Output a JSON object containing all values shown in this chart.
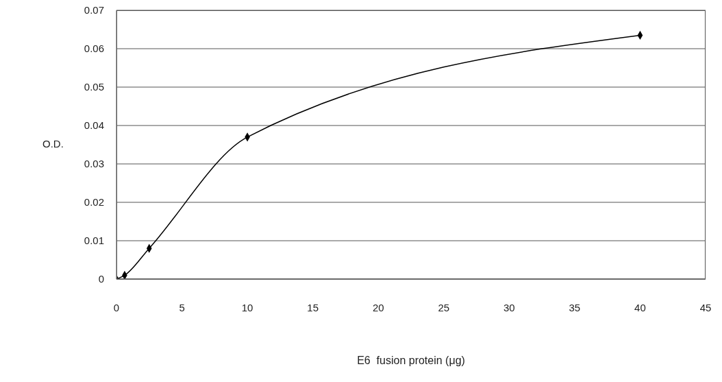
{
  "chart_data": {
    "type": "line",
    "xlabel": "E6  fusion protein (μg)",
    "ylabel": "O.D.",
    "x": [
      0,
      0.625,
      2.5,
      10,
      40
    ],
    "series": [
      {
        "color": "#000000",
        "values": [
          0,
          0.001,
          0.008,
          0.037,
          0.0635
        ]
      }
    ],
    "xlim": [
      0,
      45
    ],
    "xticks": [
      0,
      5,
      10,
      15,
      20,
      25,
      30,
      35,
      40,
      45
    ],
    "ylim": [
      0,
      0.07
    ],
    "yticks": [
      0,
      0.01,
      0.02,
      0.03,
      0.04,
      0.05,
      0.06,
      0.07
    ],
    "grid": "y",
    "marker": "diamond",
    "line_style": "solid"
  }
}
